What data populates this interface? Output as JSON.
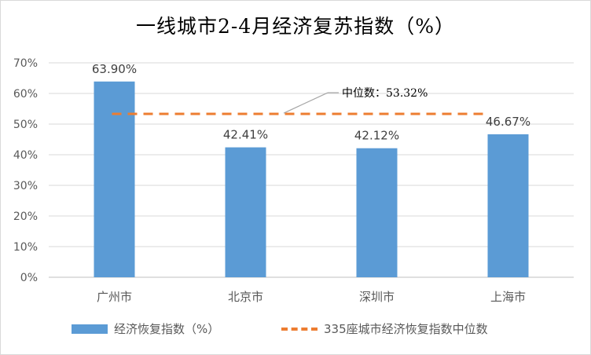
{
  "chart_data": {
    "type": "bar",
    "title": "一线城市2-4月经济复苏指数（%）",
    "categories": [
      "广州市",
      "北京市",
      "深圳市",
      "上海市"
    ],
    "series": [
      {
        "name": "经济恢复指数（%）",
        "values": [
          63.9,
          42.41,
          42.12,
          46.67
        ],
        "labels": [
          "63.90%",
          "42.41%",
          "42.12%",
          "46.67%"
        ],
        "color": "#5b9bd5"
      }
    ],
    "reference_line": {
      "name": "335座城市经济恢复指数中位数",
      "value": 53.32,
      "label": "中位数：53.32%",
      "color": "#ed7d31",
      "style": "dashed"
    },
    "yticks": [
      "0%",
      "10%",
      "20%",
      "30%",
      "40%",
      "50%",
      "60%",
      "70%"
    ],
    "ylim": [
      0,
      70
    ],
    "grid": true,
    "legend_position": "bottom"
  }
}
